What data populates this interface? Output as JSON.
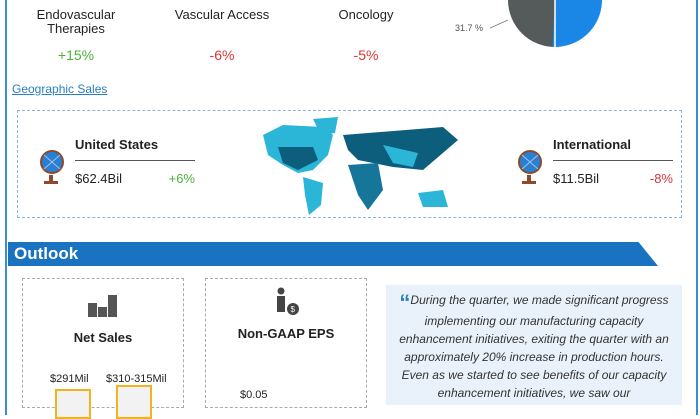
{
  "segments": [
    {
      "name": "Endovascular Therapies",
      "change": "+15%",
      "trend": "up"
    },
    {
      "name": "Vascular Access",
      "change": "-6%",
      "trend": "down"
    },
    {
      "name": "Oncology",
      "change": "-5%",
      "trend": "down"
    }
  ],
  "pie": {
    "visible_label": "31.7 %",
    "colors": {
      "gray": "#555a5a",
      "blue": "#1a87e6"
    }
  },
  "geographic": {
    "title": "Geographic Sales",
    "regions": [
      {
        "name": "United States",
        "value": "$62.4Bil",
        "change": "+6%"
      },
      {
        "name": "International",
        "value": "$11.5Bil",
        "change": "-8%"
      }
    ]
  },
  "outlook": {
    "title": "Outlook",
    "net_sales": {
      "title": "Net Sales",
      "prior": "$291Mil",
      "guidance": "$310-315Mil"
    },
    "eps": {
      "title": "Non-GAAP EPS",
      "value": "$0.05"
    },
    "quote": "During the quarter, we made significant progress implementing our manufacturing capacity enhancement initiatives, exiting the quarter with an approximately 20% increase in production hours. Even as we started to see benefits of our capacity enhancement initiatives, we saw our"
  },
  "colors": {
    "accent": "#1a73c0",
    "positive": "#4caf3a",
    "negative": "#d9343a"
  }
}
